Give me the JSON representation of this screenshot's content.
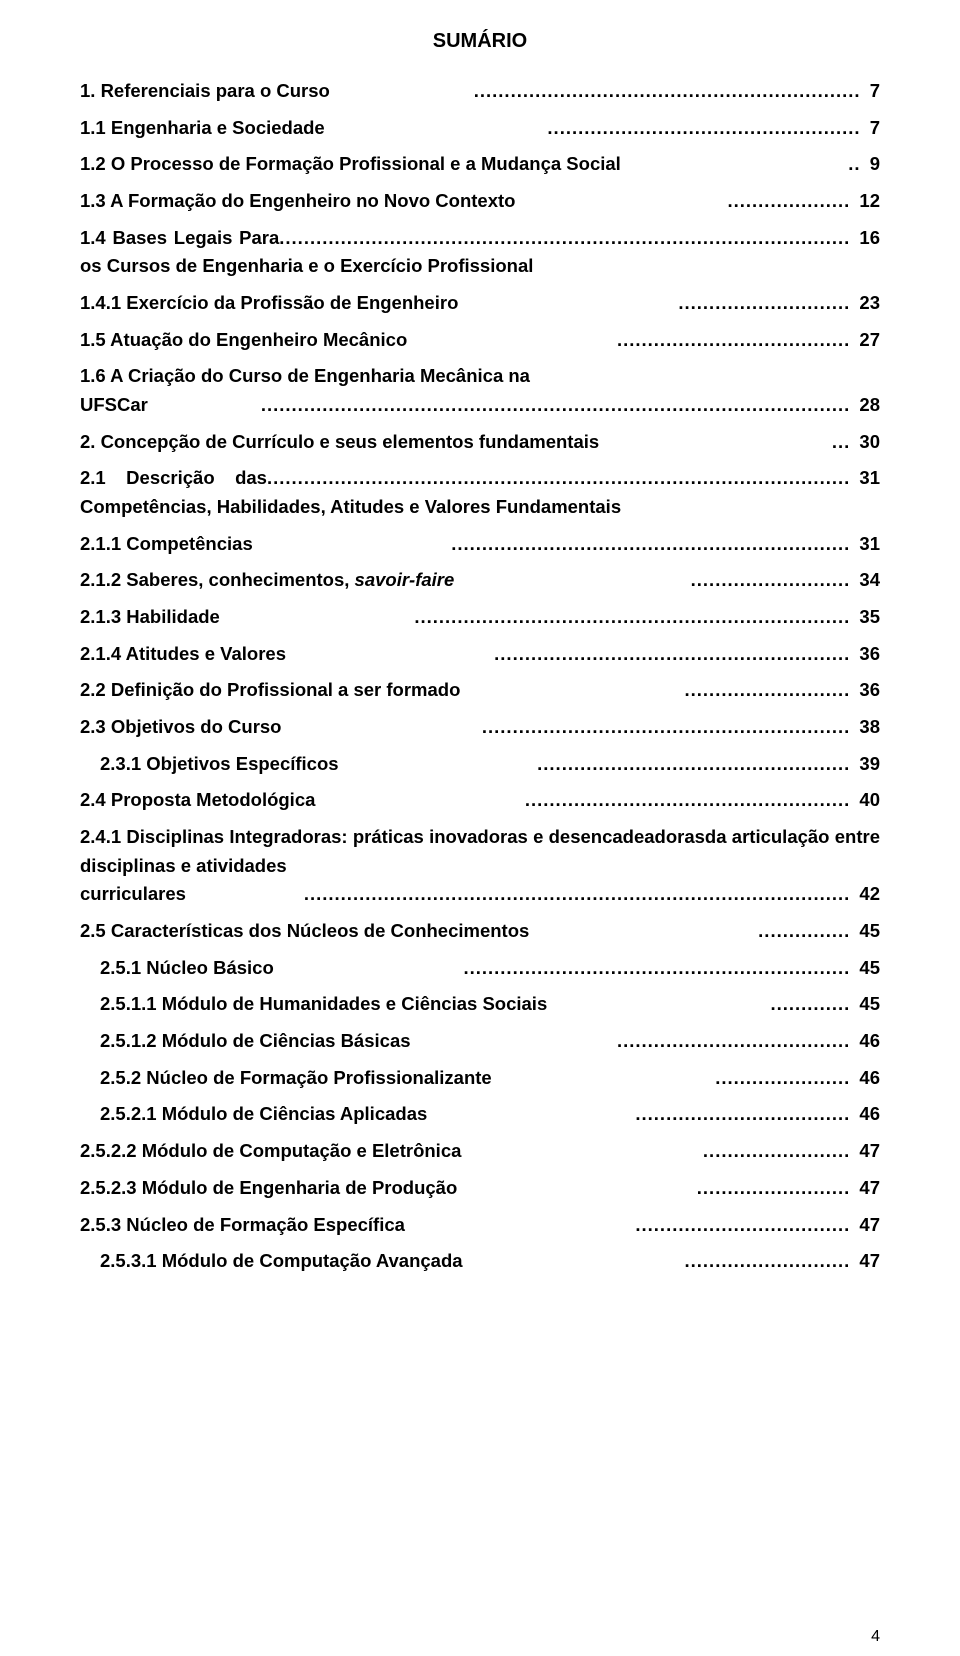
{
  "title": "SUMÁRIO",
  "page_number": "4",
  "entries": [
    {
      "text": "1. Referenciais para o Curso",
      "page": "7",
      "indent": 0,
      "justify": false,
      "dots": "..............................................................."
    },
    {
      "text": "1.1 Engenharia e Sociedade",
      "page": "7",
      "indent": 0,
      "justify": false,
      "dots": "..................................................."
    },
    {
      "text": "1.2 O Processo de Formação Profissional e a Mudança Social",
      "page": "9",
      "indent": 0,
      "justify": false,
      "dots": ".."
    },
    {
      "text": "1.3 A Formação do Engenheiro no Novo Contexto",
      "page": "12",
      "indent": 0,
      "justify": false,
      "dots": "...................."
    },
    {
      "text": "1.4 Bases Legais Para os Cursos de Engenharia e o Exercício Profissional",
      "page": "16",
      "indent": 0,
      "justify": true,
      "dots": "............................................................................................."
    },
    {
      "text": "1.4.1 Exercício da Profissão de Engenheiro",
      "page": "23",
      "indent": 0,
      "justify": false,
      "dots": "............................"
    },
    {
      "text": "1.5 Atuação do Engenheiro Mecânico",
      "page": "27",
      "indent": 0,
      "justify": false,
      "dots": "......................................"
    },
    {
      "lead": "1.6   A   Criação   do   Curso   de   Engenharia   Mecânica   na",
      "tailtext": "UFSCar",
      "page": "28",
      "indent": 0,
      "justify": true,
      "dots": "................................................................................................"
    },
    {
      "text": "2. Concepção de Currículo e seus elementos fundamentais",
      "page": "30",
      "indent": 0,
      "justify": false,
      "dots": "..."
    },
    {
      "text": "2.1 Descrição das Competências, Habilidades, Atitudes e Valores Fundamentais",
      "page": "31",
      "indent": 0,
      "justify": true,
      "dots": "..............................................................................................."
    },
    {
      "text": "2.1.1 Competências",
      "page": "31",
      "indent": 0,
      "justify": false,
      "dots": "................................................................."
    },
    {
      "text_html": "2.1.2 Saberes, conhecimentos, <em class='italic'>savoir-faire</em>",
      "page": "34",
      "indent": 0,
      "justify": false,
      "dots": ".........................."
    },
    {
      "text": "2.1.3 Habilidade",
      "page": "35",
      "indent": 0,
      "justify": false,
      "dots": "......................................................................."
    },
    {
      "text": "2.1.4 Atitudes e Valores",
      "page": "36",
      "indent": 0,
      "justify": false,
      "dots": ".........................................................."
    },
    {
      "text": "2.2 Definição do Profissional a ser formado",
      "page": "36",
      "indent": 0,
      "justify": false,
      "dots": "..........................."
    },
    {
      "text": "2.3 Objetivos do Curso",
      "page": "38",
      "indent": 0,
      "justify": false,
      "dots": "............................................................"
    },
    {
      "text": "2.3.1 Objetivos Específicos",
      "page": "39",
      "indent": 1,
      "justify": false,
      "dots": "..................................................."
    },
    {
      "text": "2.4 Proposta Metodológica",
      "page": "40",
      "indent": 0,
      "justify": false,
      "dots": "....................................................."
    },
    {
      "lead": "2.4.1   Disciplinas   Integradoras:   práticas   inovadoras   e desencadeadorasda  articulação  entre  disciplinas  e  atividades",
      "tailtext": "curriculares",
      "page": "42",
      "indent": 0,
      "justify": true,
      "dots": "........................................................................................."
    },
    {
      "text": "2.5 Características dos Núcleos de Conhecimentos",
      "page": "45",
      "indent": 0,
      "justify": false,
      "dots": "..............."
    },
    {
      "text": "2.5.1 Núcleo Básico",
      "page": "45",
      "indent": 1,
      "justify": false,
      "dots": "..............................................................."
    },
    {
      "text": "2.5.1.1 Módulo de Humanidades e Ciências Sociais",
      "page": "45",
      "indent": 1,
      "justify": false,
      "dots": "............."
    },
    {
      "text": "2.5.1.2 Módulo de Ciências Básicas",
      "page": "46",
      "indent": 1,
      "justify": false,
      "dots": "......................................"
    },
    {
      "text": "2.5.2 Núcleo de Formação Profissionalizante",
      "page": "46",
      "indent": 1,
      "justify": false,
      "dots": "......................"
    },
    {
      "text": "2.5.2.1 Módulo de Ciências Aplicadas",
      "page": "46",
      "indent": 1,
      "justify": false,
      "dots": "..................................."
    },
    {
      "text": "2.5.2.2 Módulo de Computação e Eletrônica",
      "page": "47",
      "indent": 0,
      "justify": false,
      "dots": "........................"
    },
    {
      "text": "2.5.2.3 Módulo de Engenharia de Produção",
      "page": "47",
      "indent": 0,
      "justify": false,
      "dots": "........................."
    },
    {
      "text": "2.5.3 Núcleo de Formação Específica",
      "page": "47",
      "indent": 0,
      "justify": false,
      "dots": "..................................."
    },
    {
      "text": "2.5.3.1 Módulo de Computação Avançada",
      "page": "47",
      "indent": 1,
      "justify": false,
      "dots": "..........................."
    }
  ]
}
